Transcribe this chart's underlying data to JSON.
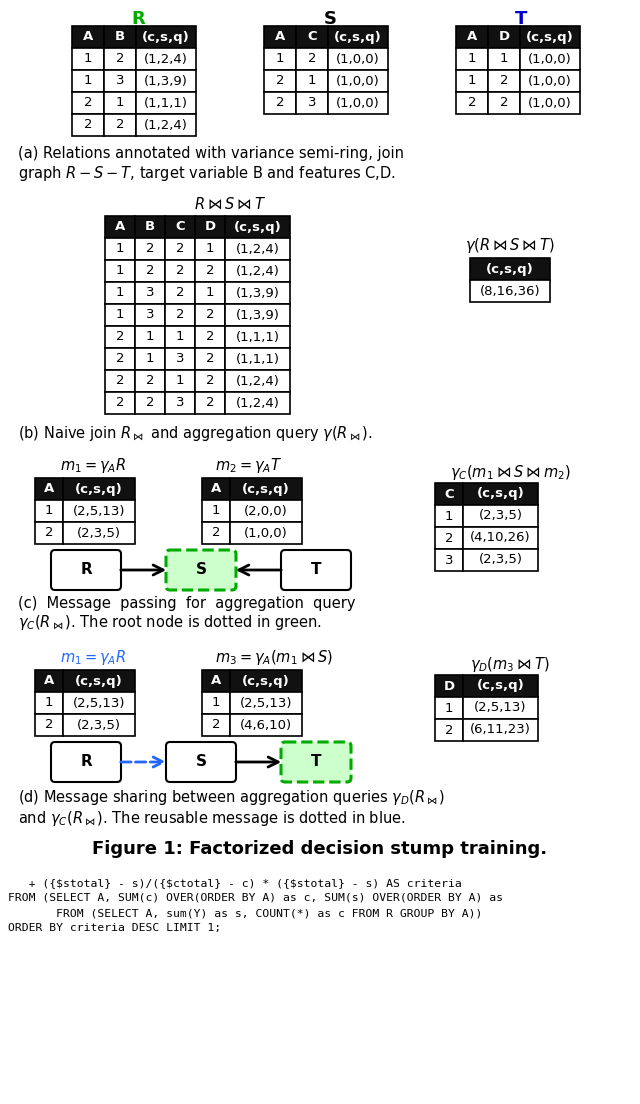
{
  "title_R": "R",
  "title_S": "S",
  "title_T": "T",
  "R_headers": [
    "A",
    "B",
    "(c,s,q)"
  ],
  "R_rows": [
    [
      "1",
      "2",
      "(1,2,4)"
    ],
    [
      "1",
      "3",
      "(1,3,9)"
    ],
    [
      "2",
      "1",
      "(1,1,1)"
    ],
    [
      "2",
      "2",
      "(1,2,4)"
    ]
  ],
  "S_headers": [
    "A",
    "C",
    "(c,s,q)"
  ],
  "S_rows": [
    [
      "1",
      "2",
      "(1,0,0)"
    ],
    [
      "2",
      "1",
      "(1,0,0)"
    ],
    [
      "2",
      "3",
      "(1,0,0)"
    ]
  ],
  "T_headers": [
    "A",
    "D",
    "(c,s,q)"
  ],
  "T_rows": [
    [
      "1",
      "1",
      "(1,0,0)"
    ],
    [
      "1",
      "2",
      "(1,0,0)"
    ],
    [
      "2",
      "2",
      "(1,0,0)"
    ]
  ],
  "join_headers": [
    "A",
    "B",
    "C",
    "D",
    "(c,s,q)"
  ],
  "join_rows": [
    [
      "1",
      "2",
      "2",
      "1",
      "(1,2,4)"
    ],
    [
      "1",
      "2",
      "2",
      "2",
      "(1,2,4)"
    ],
    [
      "1",
      "3",
      "2",
      "1",
      "(1,3,9)"
    ],
    [
      "1",
      "3",
      "2",
      "2",
      "(1,3,9)"
    ],
    [
      "2",
      "1",
      "1",
      "2",
      "(1,1,1)"
    ],
    [
      "2",
      "1",
      "3",
      "2",
      "(1,1,1)"
    ],
    [
      "2",
      "2",
      "1",
      "2",
      "(1,2,4)"
    ],
    [
      "2",
      "2",
      "3",
      "2",
      "(1,2,4)"
    ]
  ],
  "gamma_b_header": "(c,s,q)",
  "gamma_b_val": "(8,16,36)",
  "m1_headers": [
    "A",
    "(c,s,q)"
  ],
  "m1_rows": [
    [
      "1",
      "(2,5,13)"
    ],
    [
      "2",
      "(2,3,5)"
    ]
  ],
  "m2_headers": [
    "A",
    "(c,s,q)"
  ],
  "m2_rows": [
    [
      "1",
      "(2,0,0)"
    ],
    [
      "2",
      "(1,0,0)"
    ]
  ],
  "gamma_c_headers": [
    "C",
    "(c,s,q)"
  ],
  "gamma_c_rows": [
    [
      "1",
      "(2,3,5)"
    ],
    [
      "2",
      "(4,10,26)"
    ],
    [
      "3",
      "(2,3,5)"
    ]
  ],
  "m1d_headers": [
    "A",
    "(c,s,q)"
  ],
  "m1d_rows": [
    [
      "1",
      "(2,5,13)"
    ],
    [
      "2",
      "(2,3,5)"
    ]
  ],
  "m3_headers": [
    "A",
    "(c,s,q)"
  ],
  "m3_rows": [
    [
      "1",
      "(2,5,13)"
    ],
    [
      "2",
      "(4,6,10)"
    ]
  ],
  "gamma_d_headers": [
    "D",
    "(c,s,q)"
  ],
  "gamma_d_rows": [
    [
      "1",
      "(2,5,13)"
    ],
    [
      "2",
      "(6,11,23)"
    ]
  ],
  "sql_lines": [
    "   + ({$stotal} - s)/({$ctotal} - c) * ({$stotal} - s) AS criteria",
    "FROM (SELECT A, SUM(c) OVER(ORDER BY A) as c, SUM(s) OVER(ORDER BY A) as",
    "       FROM (SELECT A, sum(Y) as s, COUNT(*) as c FROM R GROUP BY A))",
    "ORDER BY criteria DESC LIMIT 1;"
  ],
  "color_header_bg": "#111111",
  "color_header_fg": "#ffffff",
  "color_cell_bg": "#ffffff",
  "color_cell_fg": "#000000",
  "color_R": "#00aa00",
  "color_S": "#000000",
  "color_T": "#0000cc",
  "color_green_fill": "#ccffcc",
  "color_green_border": "#00aa00",
  "color_blue_arrow": "#2266ff"
}
